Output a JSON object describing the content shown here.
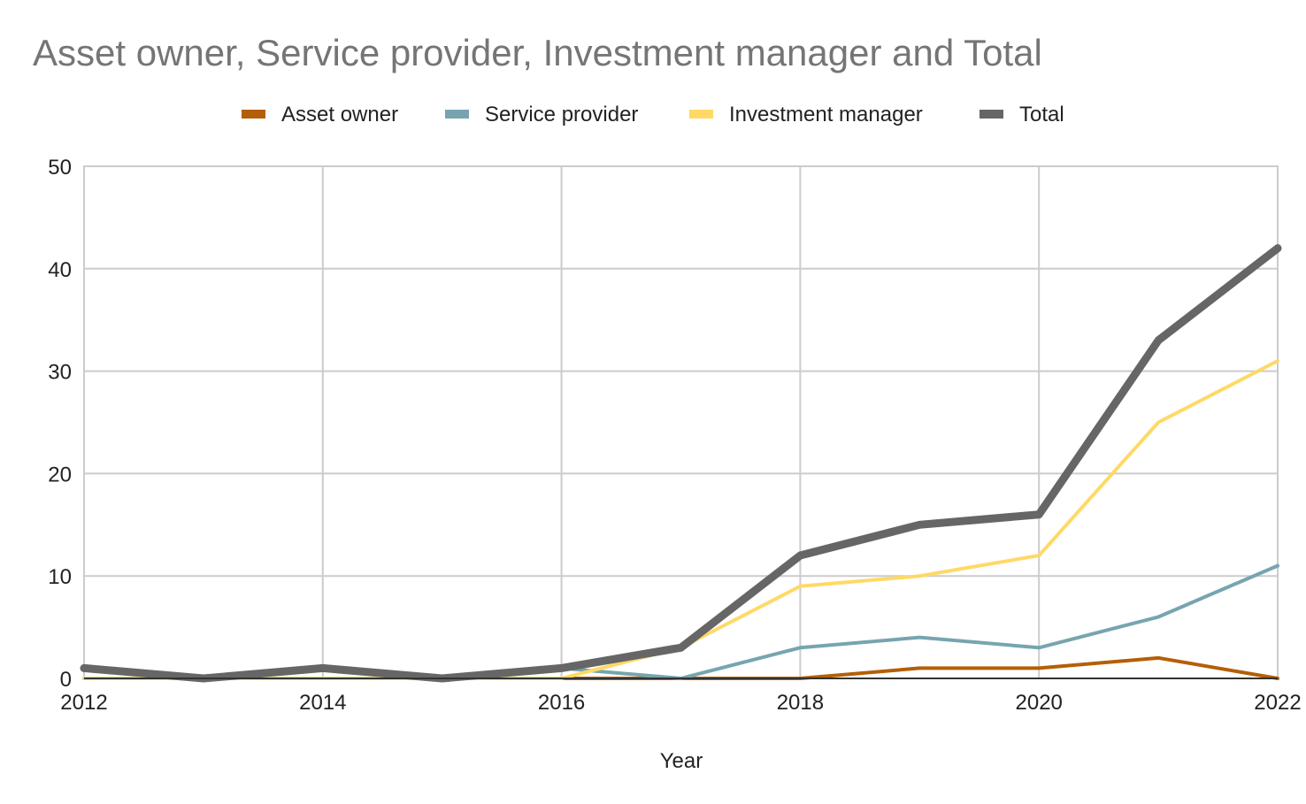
{
  "chart_data": {
    "type": "line",
    "title": "Asset owner, Service provider, Investment manager and Total",
    "xlabel": "Year",
    "ylabel": "",
    "x": [
      2012,
      2013,
      2014,
      2015,
      2016,
      2017,
      2018,
      2019,
      2020,
      2021,
      2022
    ],
    "xticks": [
      "2012",
      "2014",
      "2016",
      "2018",
      "2020",
      "2022"
    ],
    "yticks": [
      "0",
      "10",
      "20",
      "30",
      "40",
      "50"
    ],
    "xlim": [
      2012,
      2022
    ],
    "ylim": [
      0,
      50
    ],
    "grid": true,
    "legend_position": "top",
    "series": [
      {
        "name": "Asset owner",
        "color": "#b45f06",
        "values": [
          0,
          0,
          0,
          0,
          0,
          0,
          0,
          1,
          1,
          2,
          0
        ]
      },
      {
        "name": "Service provider",
        "color": "#76a5af",
        "values": [
          0,
          0,
          0,
          0,
          1,
          0,
          3,
          4,
          3,
          6,
          11
        ]
      },
      {
        "name": "Investment manager",
        "color": "#ffd966",
        "values": [
          0,
          0,
          0,
          0,
          0,
          3,
          9,
          10,
          12,
          25,
          31
        ]
      },
      {
        "name": "Total",
        "color": "#666666",
        "values": [
          1,
          0,
          1,
          0,
          1,
          3,
          12,
          15,
          16,
          33,
          42
        ]
      }
    ]
  }
}
